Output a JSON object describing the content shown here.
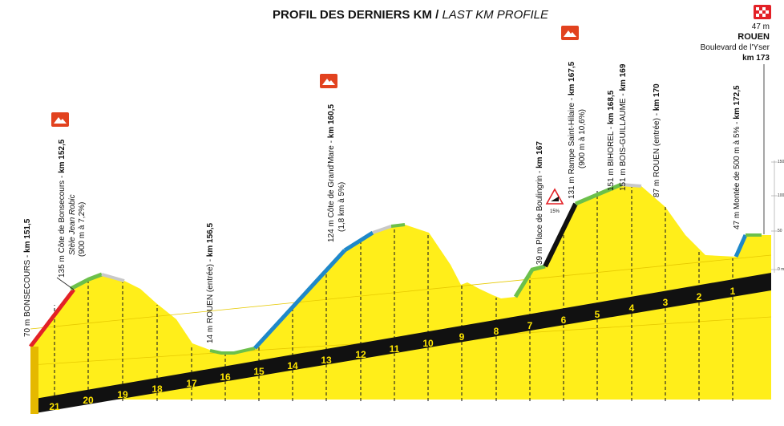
{
  "header": {
    "title_fr": "PROFIL DES DERNIERS KM",
    "separator": " / ",
    "title_en": "LAST KM PROFILE"
  },
  "finish": {
    "altitude": "47 m",
    "town": "ROUEN",
    "place": "Boulevard de l'Yser",
    "km": "km 173"
  },
  "points": [
    {
      "id": "bonsecours",
      "main": "70 m BONSECOURS - ",
      "km": "km 151,5"
    },
    {
      "id": "cote-bonsecours",
      "main": "135 m Côte de Bonsecours - ",
      "km": "km 152,5",
      "sub1": "Stèle Jean Robic",
      "sub2": "(900 m à 7,2%)"
    },
    {
      "id": "rouen-entree-1",
      "main": "14 m ROUEN (entrée) - ",
      "km": "km 156,5"
    },
    {
      "id": "cote-grand-mare",
      "main": "124 m Côte de Grand'Mare - ",
      "km": "km 160,5",
      "sub1": "(1,8 km à 5%)"
    },
    {
      "id": "boulingrin",
      "main": "39 m Place de Boulingrin - ",
      "km": "km 167"
    },
    {
      "id": "rampe-st-hilaire",
      "main": "131 m Rampe Saint-Hilaire - ",
      "km": "km 167,5",
      "sub1": "(900 m à 10,6%)"
    },
    {
      "id": "bihorel",
      "main": "151 m BIHOREL - ",
      "km": "km 168,5"
    },
    {
      "id": "bois-guillaume",
      "main": "151 m BOIS-GUILLAUME - ",
      "km": "km 169"
    },
    {
      "id": "rouen-entree-2",
      "main": "87 m ROUEN (entrée) - ",
      "km": "km 170"
    },
    {
      "id": "montee",
      "main": "47 m Montée de 500 m à 5% - ",
      "km": "km 172,5"
    }
  ],
  "gradient_sign": "15%",
  "km_markers": [
    "21",
    "20",
    "19",
    "18",
    "17",
    "16",
    "15",
    "14",
    "13",
    "12",
    "11",
    "10",
    "9",
    "8",
    "7",
    "6",
    "5",
    "4",
    "3",
    "2",
    "1"
  ],
  "altitude_scale": [
    "150",
    "100",
    "50",
    "0 m"
  ],
  "colors": {
    "road_fill": "#ffee1a",
    "base": "#111111",
    "grade_red": "#e32127",
    "grade_blue": "#1f88c9",
    "grade_green": "#6cc04a",
    "grade_black": "#111111",
    "grade_gray": "#c8c8c8",
    "climb_badge": "#e2421f"
  }
}
